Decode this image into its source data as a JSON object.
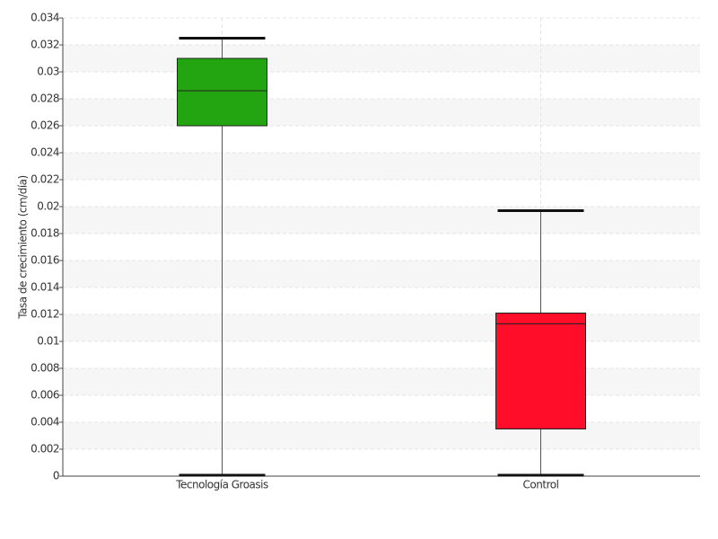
{
  "chart_data": {
    "type": "box",
    "y_label": "Tasa de crecimiento (cm/día)",
    "categories": [
      "Tecnología Groasis",
      "Control"
    ],
    "boxes": [
      {
        "min": 0,
        "q1": 0.026,
        "median": 0.0286,
        "q3": 0.031,
        "max": 0.0325,
        "color": "#22a511"
      },
      {
        "min": 0,
        "q1": 0.0035,
        "median": 0.0113,
        "q3": 0.0121,
        "max": 0.0197,
        "color": "#ff0d29"
      }
    ],
    "ylim": [
      0,
      0.034
    ],
    "yticks": [
      0,
      0.002,
      0.004,
      0.006,
      0.008,
      0.01,
      0.012,
      0.014,
      0.016,
      0.018,
      0.02,
      0.022,
      0.024,
      0.026,
      0.028,
      0.03,
      0.032,
      0.034
    ],
    "grid": true
  }
}
